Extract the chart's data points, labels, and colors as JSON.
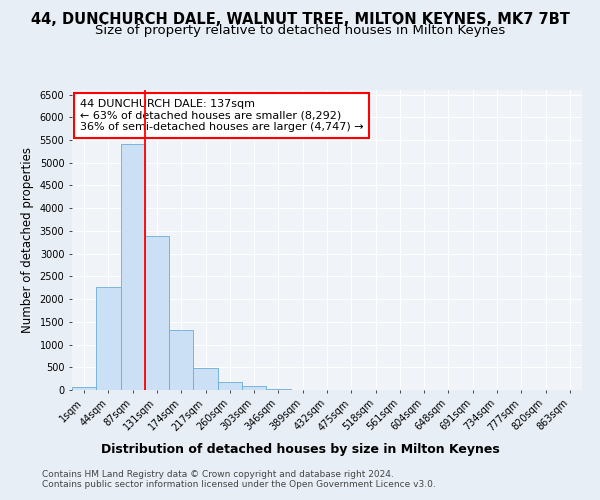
{
  "title": "44, DUNCHURCH DALE, WALNUT TREE, MILTON KEYNES, MK7 7BT",
  "subtitle": "Size of property relative to detached houses in Milton Keynes",
  "xlabel": "Distribution of detached houses by size in Milton Keynes",
  "ylabel": "Number of detached properties",
  "footnote1": "Contains HM Land Registry data © Crown copyright and database right 2024.",
  "footnote2": "Contains public sector information licensed under the Open Government Licence v3.0.",
  "bin_labels": [
    "1sqm",
    "44sqm",
    "87sqm",
    "131sqm",
    "174sqm",
    "217sqm",
    "260sqm",
    "303sqm",
    "346sqm",
    "389sqm",
    "432sqm",
    "475sqm",
    "518sqm",
    "561sqm",
    "604sqm",
    "648sqm",
    "691sqm",
    "734sqm",
    "777sqm",
    "820sqm",
    "863sqm"
  ],
  "bar_values": [
    75,
    2270,
    5420,
    3380,
    1310,
    490,
    185,
    80,
    20,
    5,
    0,
    0,
    0,
    0,
    0,
    0,
    0,
    0,
    0,
    0,
    0
  ],
  "bar_color": "#cce0f5",
  "bar_edge_color": "#6aaed6",
  "vline_x": 2.5,
  "vline_color": "red",
  "annotation_text": "44 DUNCHURCH DALE: 137sqm\n← 63% of detached houses are smaller (8,292)\n36% of semi-detached houses are larger (4,747) →",
  "annotation_box_facecolor": "white",
  "annotation_box_edgecolor": "red",
  "ylim": [
    0,
    6600
  ],
  "yticks": [
    0,
    500,
    1000,
    1500,
    2000,
    2500,
    3000,
    3500,
    4000,
    4500,
    5000,
    5500,
    6000,
    6500
  ],
  "bg_color": "#e8eef6",
  "plot_bg_color": "#f0f4f9",
  "grid_color": "#ffffff",
  "title_fontsize": 10.5,
  "subtitle_fontsize": 9.5,
  "xlabel_fontsize": 9,
  "ylabel_fontsize": 8.5,
  "tick_fontsize": 7,
  "annotation_fontsize": 8,
  "footnote_fontsize": 6.5
}
